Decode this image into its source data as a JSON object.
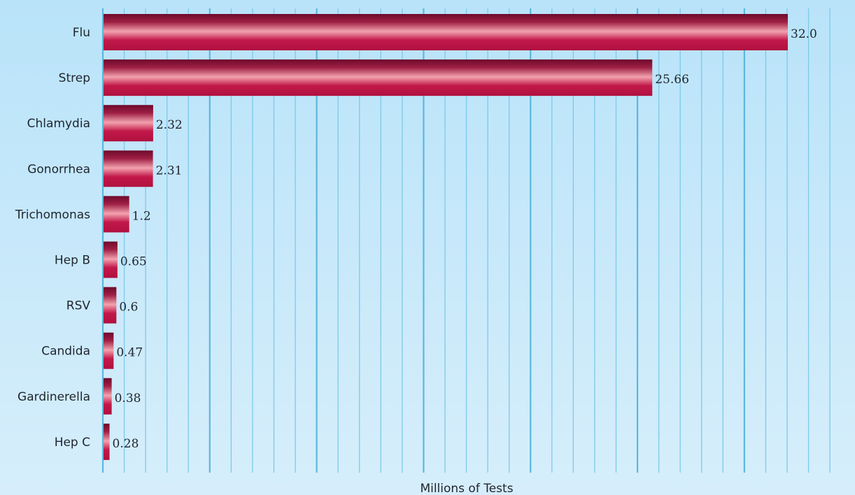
{
  "chart_data": {
    "type": "bar",
    "orientation": "horizontal",
    "categories": [
      "Flu",
      "Strep",
      "Chlamydia",
      "Gonorrhea",
      "Trichomonas",
      "Hep B",
      "RSV",
      "Candida",
      "Gardinerella",
      "Hep C"
    ],
    "values": [
      32.0,
      25.66,
      2.32,
      2.31,
      1.2,
      0.65,
      0.6,
      0.47,
      0.38,
      0.28
    ],
    "value_labels": [
      "32.0",
      "25.66",
      "2.32",
      "2.31",
      "1.2",
      "0.65",
      "0.6",
      "0.47",
      "0.38",
      "0.28"
    ],
    "title": "",
    "xlabel": "Millions of Tests",
    "ylabel": "",
    "xlim": [
      0,
      35
    ],
    "grid": true,
    "legend": "none",
    "colors": {
      "bar_dark": "#6e0a2c",
      "bar_light": "#f2a2ae",
      "bar_mid": "#c2184a",
      "grid_major": "#5bb8dd",
      "grid_minor": "#7ccaea",
      "background_top": "#b9e3f9",
      "background_bottom": "#d6eefb"
    }
  }
}
